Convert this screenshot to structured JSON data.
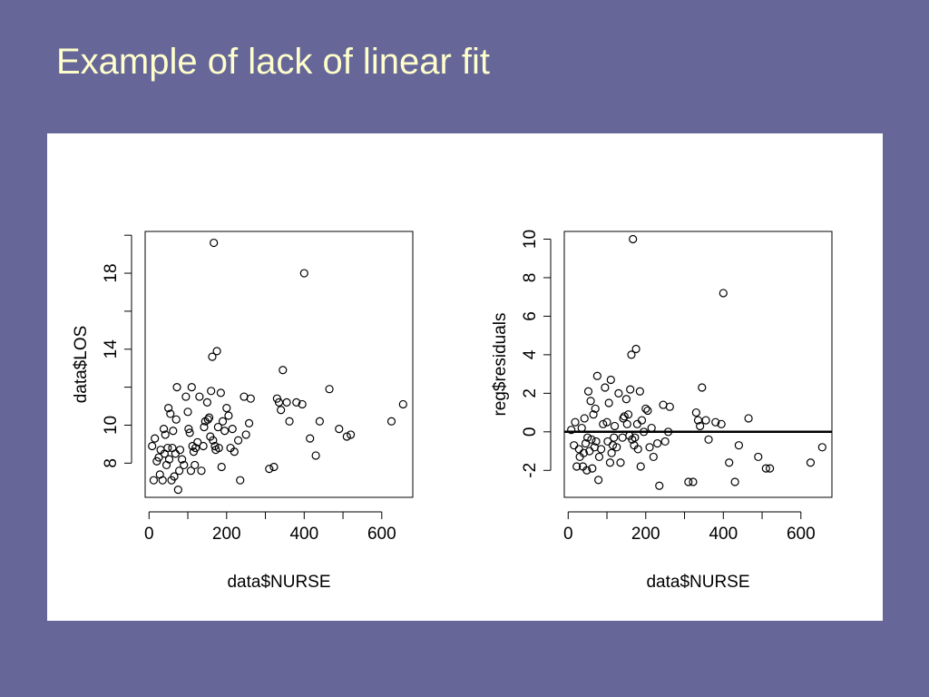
{
  "slide": {
    "title": "Example of lack of linear fit",
    "background_color": "#666699",
    "title_color": "#ffffcc"
  },
  "chart_data": [
    {
      "type": "scatter",
      "title": "",
      "xlabel": "data$NURSE",
      "ylabel": "data$LOS",
      "xlim": [
        -10,
        680
      ],
      "ylim": [
        6.2,
        20.2
      ],
      "xticks": [
        0,
        200,
        400,
        600
      ],
      "yticks": [
        8,
        10,
        14,
        18
      ],
      "point_marker": "open-circle",
      "points": [
        [
          8,
          8.9
        ],
        [
          15,
          9.3
        ],
        [
          20,
          8.1
        ],
        [
          25,
          8.3
        ],
        [
          12,
          7.1
        ],
        [
          28,
          7.4
        ],
        [
          30,
          8.7
        ],
        [
          35,
          7.1
        ],
        [
          38,
          9.8
        ],
        [
          40,
          8.5
        ],
        [
          42,
          9.5
        ],
        [
          45,
          7.9
        ],
        [
          48,
          8.8
        ],
        [
          50,
          10.9
        ],
        [
          52,
          8.2
        ],
        [
          55,
          10.6
        ],
        [
          58,
          7.1
        ],
        [
          60,
          8.8
        ],
        [
          62,
          9.7
        ],
        [
          65,
          7.3
        ],
        [
          68,
          8.5
        ],
        [
          70,
          10.3
        ],
        [
          72,
          12.0
        ],
        [
          75,
          6.6
        ],
        [
          78,
          7.6
        ],
        [
          80,
          8.7
        ],
        [
          85,
          8.2
        ],
        [
          90,
          7.9
        ],
        [
          95,
          11.5
        ],
        [
          100,
          10.7
        ],
        [
          102,
          9.8
        ],
        [
          105,
          9.6
        ],
        [
          108,
          7.6
        ],
        [
          110,
          12.0
        ],
        [
          112,
          8.9
        ],
        [
          115,
          8.6
        ],
        [
          118,
          7.9
        ],
        [
          120,
          8.8
        ],
        [
          125,
          9.1
        ],
        [
          130,
          11.5
        ],
        [
          135,
          7.6
        ],
        [
          140,
          8.9
        ],
        [
          142,
          9.9
        ],
        [
          145,
          10.2
        ],
        [
          150,
          11.2
        ],
        [
          152,
          10.3
        ],
        [
          155,
          10.4
        ],
        [
          158,
          9.4
        ],
        [
          160,
          11.8
        ],
        [
          163,
          13.6
        ],
        [
          165,
          9.2
        ],
        [
          167,
          19.6
        ],
        [
          170,
          8.9
        ],
        [
          172,
          8.7
        ],
        [
          175,
          13.9
        ],
        [
          178,
          9.9
        ],
        [
          180,
          8.8
        ],
        [
          185,
          11.7
        ],
        [
          187,
          7.8
        ],
        [
          190,
          10.2
        ],
        [
          195,
          9.7
        ],
        [
          200,
          10.9
        ],
        [
          205,
          10.5
        ],
        [
          210,
          8.8
        ],
        [
          215,
          9.8
        ],
        [
          220,
          8.6
        ],
        [
          230,
          9.2
        ],
        [
          235,
          7.1
        ],
        [
          245,
          11.5
        ],
        [
          250,
          9.5
        ],
        [
          258,
          10.1
        ],
        [
          262,
          11.4
        ],
        [
          310,
          7.7
        ],
        [
          322,
          7.8
        ],
        [
          330,
          11.4
        ],
        [
          335,
          11.2
        ],
        [
          340,
          10.8
        ],
        [
          345,
          12.9
        ],
        [
          355,
          11.2
        ],
        [
          362,
          10.2
        ],
        [
          380,
          11.2
        ],
        [
          395,
          11.1
        ],
        [
          400,
          18.0
        ],
        [
          415,
          9.3
        ],
        [
          430,
          8.4
        ],
        [
          440,
          10.2
        ],
        [
          465,
          11.9
        ],
        [
          490,
          9.8
        ],
        [
          510,
          9.4
        ],
        [
          520,
          9.5
        ],
        [
          625,
          10.2
        ],
        [
          655,
          11.1
        ]
      ]
    },
    {
      "type": "scatter",
      "title": "",
      "xlabel": "data$NURSE",
      "ylabel": "reg$residuals",
      "xlim": [
        -10,
        680
      ],
      "ylim": [
        -3.4,
        10.4
      ],
      "xticks": [
        0,
        200,
        400,
        600
      ],
      "yticks": [
        -2,
        0,
        2,
        4,
        6,
        8,
        10
      ],
      "reference_line_y": 0,
      "point_marker": "open-circle",
      "points": [
        [
          8,
          0.1
        ],
        [
          15,
          -0.7
        ],
        [
          18,
          0.5
        ],
        [
          22,
          -1.8
        ],
        [
          28,
          -0.9
        ],
        [
          30,
          -1.3
        ],
        [
          35,
          0.2
        ],
        [
          38,
          -1.8
        ],
        [
          40,
          -1.1
        ],
        [
          42,
          0.7
        ],
        [
          45,
          -0.6
        ],
        [
          48,
          -2.0
        ],
        [
          50,
          -0.3
        ],
        [
          52,
          2.1
        ],
        [
          55,
          -1.0
        ],
        [
          58,
          1.6
        ],
        [
          60,
          -0.4
        ],
        [
          62,
          -1.9
        ],
        [
          65,
          0.9
        ],
        [
          68,
          -0.8
        ],
        [
          70,
          1.2
        ],
        [
          72,
          -0.5
        ],
        [
          75,
          2.9
        ],
        [
          78,
          -2.5
        ],
        [
          80,
          -1.3
        ],
        [
          85,
          -0.9
        ],
        [
          90,
          0.4
        ],
        [
          95,
          2.3
        ],
        [
          100,
          0.5
        ],
        [
          102,
          -0.5
        ],
        [
          105,
          1.5
        ],
        [
          108,
          -1.6
        ],
        [
          110,
          2.7
        ],
        [
          112,
          -1.1
        ],
        [
          115,
          -0.7
        ],
        [
          118,
          -0.3
        ],
        [
          120,
          0.3
        ],
        [
          125,
          -0.8
        ],
        [
          130,
          2.0
        ],
        [
          135,
          -1.6
        ],
        [
          140,
          -0.3
        ],
        [
          142,
          0.7
        ],
        [
          145,
          0.8
        ],
        [
          150,
          1.7
        ],
        [
          152,
          0.4
        ],
        [
          155,
          0.9
        ],
        [
          158,
          -0.2
        ],
        [
          160,
          2.2
        ],
        [
          163,
          4.0
        ],
        [
          165,
          -0.4
        ],
        [
          167,
          10.0
        ],
        [
          170,
          -0.7
        ],
        [
          172,
          -0.3
        ],
        [
          175,
          4.3
        ],
        [
          178,
          0.4
        ],
        [
          180,
          -0.9
        ],
        [
          185,
          2.1
        ],
        [
          187,
          -1.8
        ],
        [
          190,
          0.6
        ],
        [
          195,
          0.0
        ],
        [
          200,
          1.2
        ],
        [
          205,
          1.1
        ],
        [
          210,
          -0.8
        ],
        [
          215,
          0.2
        ],
        [
          220,
          -1.3
        ],
        [
          230,
          -0.6
        ],
        [
          235,
          -2.8
        ],
        [
          245,
          1.4
        ],
        [
          250,
          -0.5
        ],
        [
          258,
          0.0
        ],
        [
          262,
          1.3
        ],
        [
          310,
          -2.6
        ],
        [
          322,
          -2.6
        ],
        [
          330,
          1.0
        ],
        [
          335,
          0.6
        ],
        [
          340,
          0.3
        ],
        [
          345,
          2.3
        ],
        [
          355,
          0.6
        ],
        [
          362,
          -0.4
        ],
        [
          380,
          0.5
        ],
        [
          395,
          0.4
        ],
        [
          400,
          7.2
        ],
        [
          415,
          -1.6
        ],
        [
          430,
          -2.6
        ],
        [
          440,
          -0.7
        ],
        [
          465,
          0.7
        ],
        [
          490,
          -1.3
        ],
        [
          510,
          -1.9
        ],
        [
          520,
          -1.9
        ],
        [
          625,
          -1.6
        ],
        [
          655,
          -0.8
        ]
      ]
    }
  ]
}
